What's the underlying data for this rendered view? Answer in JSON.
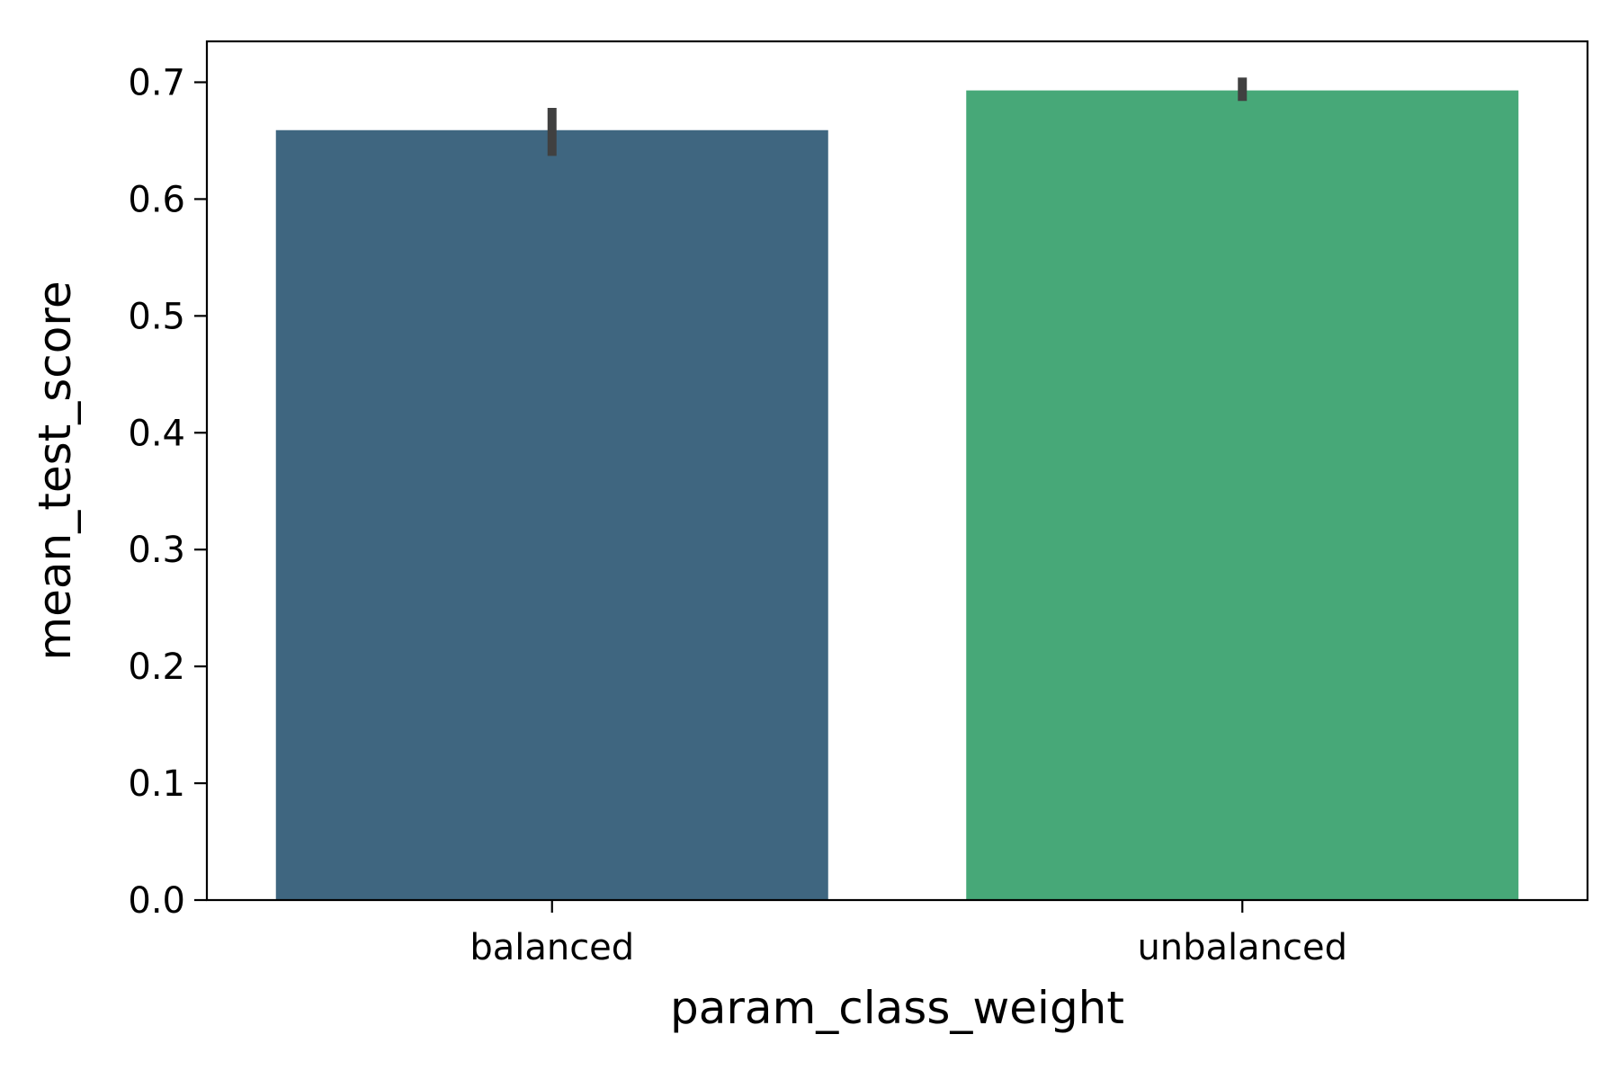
{
  "chart_data": {
    "type": "bar",
    "title": "",
    "xlabel": "param_class_weight",
    "ylabel": "mean_test_score",
    "categories": [
      "balanced",
      "unbalanced"
    ],
    "values": [
      0.659,
      0.693
    ],
    "error_bars": [
      [
        0.637,
        0.678
      ],
      [
        0.684,
        0.704
      ]
    ],
    "ylim": [
      0,
      0.735
    ],
    "yticks": [
      "0.0",
      "0.1",
      "0.2",
      "0.3",
      "0.4",
      "0.5",
      "0.6",
      "0.7"
    ],
    "colors": [
      "#3f6680",
      "#47a878"
    ],
    "error_color": "#404040",
    "grid": false,
    "legend": "none"
  }
}
